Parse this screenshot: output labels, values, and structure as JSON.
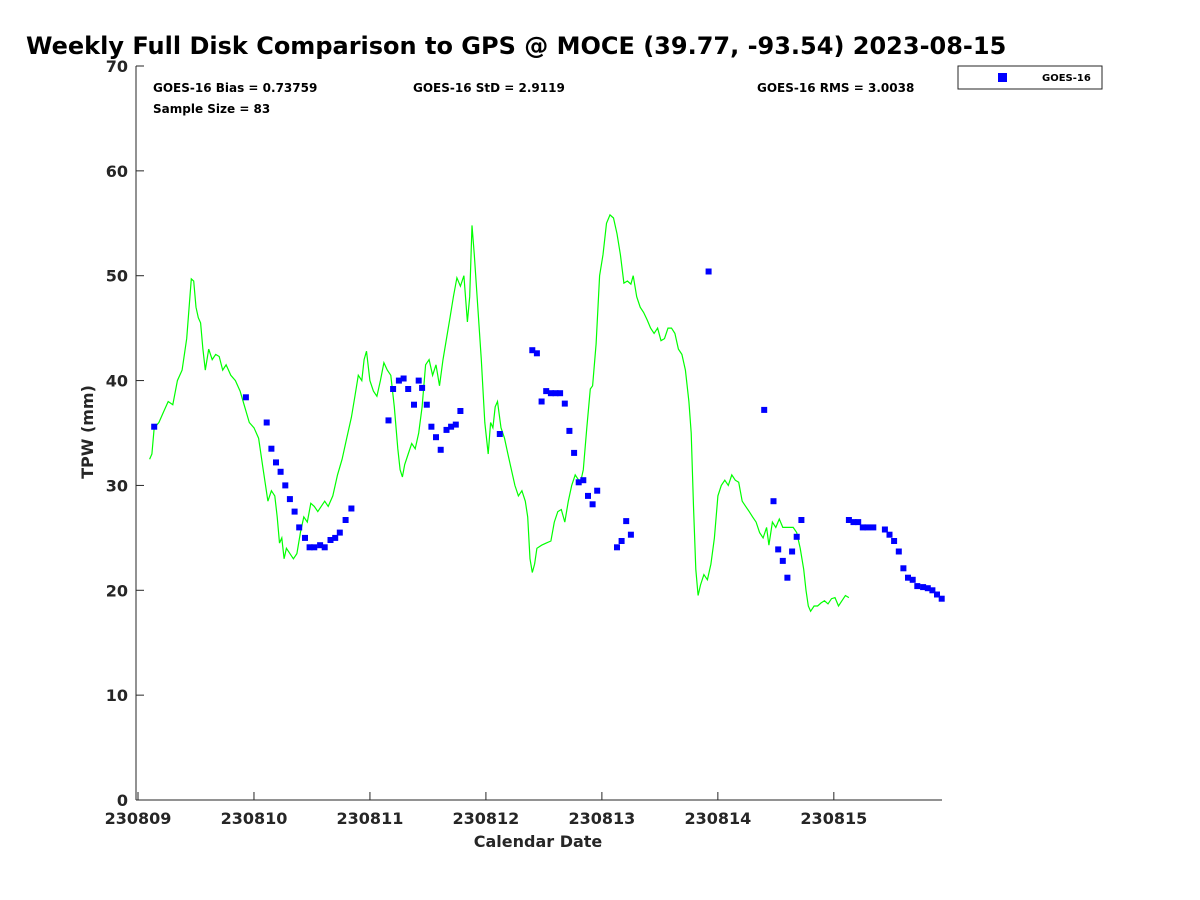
{
  "chart_data": {
    "type": "scatter",
    "title": "Weekly Full Disk Comparison to GPS @ MOCE (39.77, -93.54) 2023-08-15",
    "xlabel": "Calendar Date",
    "ylabel": "TPW (mm)",
    "xlim": [
      0,
      6.95
    ],
    "ylim": [
      0,
      70
    ],
    "x_tick_values": [
      0,
      1,
      2,
      3,
      4,
      5,
      6
    ],
    "x_tick_labels": [
      "230809",
      "230810",
      "230811",
      "230812",
      "230813",
      "230814",
      "230815"
    ],
    "y_ticks": [
      0,
      10,
      20,
      30,
      40,
      50,
      60,
      70
    ],
    "grid": false,
    "legend": {
      "position": "top-right",
      "entries": [
        "GOES-16"
      ]
    },
    "stats": {
      "bias": "GOES-16 Bias = 0.73759",
      "std": "GOES-16 StD = 2.9119",
      "rms": "GOES-16 RMS = 3.0038",
      "sample": "Sample Size = 83"
    },
    "series": [
      {
        "name": "GPS",
        "kind": "line",
        "color": "#00ff00",
        "points": [
          [
            0.1,
            32.5
          ],
          [
            0.12,
            33.0
          ],
          [
            0.14,
            35.5
          ],
          [
            0.18,
            36.0
          ],
          [
            0.22,
            37.0
          ],
          [
            0.26,
            38.0
          ],
          [
            0.3,
            37.7
          ],
          [
            0.34,
            40.0
          ],
          [
            0.38,
            41.0
          ],
          [
            0.42,
            44.0
          ],
          [
            0.46,
            49.7
          ],
          [
            0.48,
            49.5
          ],
          [
            0.5,
            47.0
          ],
          [
            0.52,
            46.0
          ],
          [
            0.54,
            45.5
          ],
          [
            0.56,
            43.0
          ],
          [
            0.58,
            41.0
          ],
          [
            0.61,
            43.0
          ],
          [
            0.64,
            42.0
          ],
          [
            0.67,
            42.5
          ],
          [
            0.7,
            42.3
          ],
          [
            0.73,
            41.0
          ],
          [
            0.76,
            41.5
          ],
          [
            0.8,
            40.5
          ],
          [
            0.84,
            40.0
          ],
          [
            0.88,
            39.0
          ],
          [
            0.92,
            37.5
          ],
          [
            0.96,
            36.0
          ],
          [
            1.0,
            35.5
          ],
          [
            1.04,
            34.5
          ],
          [
            1.08,
            31.5
          ],
          [
            1.12,
            28.5
          ],
          [
            1.15,
            29.5
          ],
          [
            1.18,
            29.0
          ],
          [
            1.2,
            27.0
          ],
          [
            1.22,
            24.5
          ],
          [
            1.24,
            25.0
          ],
          [
            1.26,
            23.0
          ],
          [
            1.28,
            24.0
          ],
          [
            1.31,
            23.5
          ],
          [
            1.34,
            23.0
          ],
          [
            1.37,
            23.5
          ],
          [
            1.4,
            25.5
          ],
          [
            1.43,
            27.0
          ],
          [
            1.46,
            26.5
          ],
          [
            1.49,
            28.3
          ],
          [
            1.52,
            28.0
          ],
          [
            1.55,
            27.5
          ],
          [
            1.58,
            28.0
          ],
          [
            1.61,
            28.5
          ],
          [
            1.64,
            28.0
          ],
          [
            1.68,
            29.0
          ],
          [
            1.72,
            31.0
          ],
          [
            1.76,
            32.5
          ],
          [
            1.8,
            34.5
          ],
          [
            1.84,
            36.5
          ],
          [
            1.87,
            38.5
          ],
          [
            1.9,
            40.5
          ],
          [
            1.93,
            40.0
          ],
          [
            1.95,
            42.0
          ],
          [
            1.97,
            42.8
          ],
          [
            2.0,
            40.0
          ],
          [
            2.03,
            39.0
          ],
          [
            2.06,
            38.5
          ],
          [
            2.09,
            40.0
          ],
          [
            2.12,
            41.7
          ],
          [
            2.15,
            41.0
          ],
          [
            2.18,
            40.5
          ],
          [
            2.21,
            37.5
          ],
          [
            2.24,
            33.5
          ],
          [
            2.26,
            31.5
          ],
          [
            2.28,
            30.8
          ],
          [
            2.3,
            32.0
          ],
          [
            2.33,
            33.0
          ],
          [
            2.36,
            34.0
          ],
          [
            2.39,
            33.5
          ],
          [
            2.42,
            35.0
          ],
          [
            2.45,
            37.5
          ],
          [
            2.48,
            41.5
          ],
          [
            2.51,
            42.0
          ],
          [
            2.54,
            40.5
          ],
          [
            2.57,
            41.5
          ],
          [
            2.6,
            39.5
          ],
          [
            2.63,
            42.0
          ],
          [
            2.66,
            44.0
          ],
          [
            2.69,
            46.0
          ],
          [
            2.72,
            48.0
          ],
          [
            2.75,
            49.8
          ],
          [
            2.78,
            49.0
          ],
          [
            2.81,
            50.0
          ],
          [
            2.84,
            45.6
          ],
          [
            2.86,
            48.0
          ],
          [
            2.88,
            54.8
          ],
          [
            2.9,
            52.0
          ],
          [
            2.93,
            47.0
          ],
          [
            2.96,
            42.0
          ],
          [
            2.99,
            36.0
          ],
          [
            3.02,
            33.0
          ],
          [
            3.04,
            36.0
          ],
          [
            3.06,
            35.5
          ],
          [
            3.08,
            37.5
          ],
          [
            3.1,
            38.0
          ],
          [
            3.13,
            35.5
          ],
          [
            3.16,
            34.5
          ],
          [
            3.19,
            33.0
          ],
          [
            3.22,
            31.5
          ],
          [
            3.25,
            30.0
          ],
          [
            3.28,
            29.0
          ],
          [
            3.31,
            29.5
          ],
          [
            3.34,
            28.5
          ],
          [
            3.36,
            27.0
          ],
          [
            3.38,
            23.0
          ],
          [
            3.4,
            21.7
          ],
          [
            3.42,
            22.5
          ],
          [
            3.44,
            24.0
          ],
          [
            3.48,
            24.3
          ],
          [
            3.52,
            24.5
          ],
          [
            3.56,
            24.7
          ],
          [
            3.59,
            26.5
          ],
          [
            3.62,
            27.5
          ],
          [
            3.65,
            27.7
          ],
          [
            3.68,
            26.5
          ],
          [
            3.71,
            28.5
          ],
          [
            3.74,
            30.0
          ],
          [
            3.77,
            31.0
          ],
          [
            3.8,
            30.5
          ],
          [
            3.82,
            30.5
          ],
          [
            3.84,
            31.5
          ],
          [
            3.87,
            35.5
          ],
          [
            3.9,
            39.2
          ],
          [
            3.92,
            39.5
          ],
          [
            3.95,
            43.5
          ],
          [
            3.98,
            50.0
          ],
          [
            4.01,
            52.0
          ],
          [
            4.04,
            55.0
          ],
          [
            4.07,
            55.8
          ],
          [
            4.1,
            55.5
          ],
          [
            4.13,
            54.0
          ],
          [
            4.16,
            52.0
          ],
          [
            4.19,
            49.3
          ],
          [
            4.22,
            49.5
          ],
          [
            4.25,
            49.2
          ],
          [
            4.27,
            50.0
          ],
          [
            4.3,
            48.0
          ],
          [
            4.33,
            47.0
          ],
          [
            4.36,
            46.5
          ],
          [
            4.39,
            45.8
          ],
          [
            4.42,
            45.0
          ],
          [
            4.45,
            44.5
          ],
          [
            4.48,
            45.0
          ],
          [
            4.51,
            43.8
          ],
          [
            4.54,
            44.0
          ],
          [
            4.57,
            45.0
          ],
          [
            4.6,
            45.0
          ],
          [
            4.63,
            44.5
          ],
          [
            4.66,
            43.0
          ],
          [
            4.69,
            42.5
          ],
          [
            4.72,
            41.0
          ],
          [
            4.75,
            38.0
          ],
          [
            4.77,
            35.0
          ],
          [
            4.79,
            28.0
          ],
          [
            4.81,
            22.0
          ],
          [
            4.83,
            19.5
          ],
          [
            4.85,
            20.5
          ],
          [
            4.88,
            21.5
          ],
          [
            4.91,
            21.0
          ],
          [
            4.94,
            22.5
          ],
          [
            4.97,
            25.0
          ],
          [
            5.0,
            29.0
          ],
          [
            5.03,
            30.0
          ],
          [
            5.06,
            30.5
          ],
          [
            5.09,
            30.0
          ],
          [
            5.12,
            31.0
          ],
          [
            5.15,
            30.5
          ],
          [
            5.18,
            30.3
          ],
          [
            5.21,
            28.5
          ],
          [
            5.24,
            28.0
          ],
          [
            5.27,
            27.5
          ],
          [
            5.3,
            27.0
          ],
          [
            5.33,
            26.5
          ],
          [
            5.36,
            25.5
          ],
          [
            5.39,
            25.0
          ],
          [
            5.42,
            26.0
          ],
          [
            5.44,
            24.3
          ],
          [
            5.47,
            26.5
          ],
          [
            5.5,
            26.0
          ],
          [
            5.53,
            26.8
          ],
          [
            5.56,
            26.0
          ],
          [
            5.59,
            26.0
          ],
          [
            5.62,
            26.0
          ],
          [
            5.65,
            26.0
          ],
          [
            5.68,
            25.5
          ],
          [
            5.71,
            24.0
          ],
          [
            5.74,
            22.0
          ],
          [
            5.76,
            20.0
          ],
          [
            5.78,
            18.5
          ],
          [
            5.8,
            18.0
          ],
          [
            5.83,
            18.5
          ],
          [
            5.86,
            18.5
          ],
          [
            5.89,
            18.8
          ],
          [
            5.92,
            19.0
          ],
          [
            5.95,
            18.7
          ],
          [
            5.98,
            19.2
          ],
          [
            6.01,
            19.3
          ],
          [
            6.04,
            18.5
          ],
          [
            6.07,
            19.0
          ],
          [
            6.1,
            19.5
          ],
          [
            6.13,
            19.3
          ]
        ]
      },
      {
        "name": "GOES-16",
        "kind": "scatter",
        "color": "#0000ff",
        "points": [
          [
            0.14,
            35.6
          ],
          [
            0.93,
            38.4
          ],
          [
            1.11,
            36.0
          ],
          [
            1.15,
            33.5
          ],
          [
            1.19,
            32.2
          ],
          [
            1.23,
            31.3
          ],
          [
            1.27,
            30.0
          ],
          [
            1.31,
            28.7
          ],
          [
            1.35,
            27.5
          ],
          [
            1.39,
            26.0
          ],
          [
            1.44,
            25.0
          ],
          [
            1.48,
            24.1
          ],
          [
            1.52,
            24.1
          ],
          [
            1.57,
            24.3
          ],
          [
            1.61,
            24.1
          ],
          [
            1.66,
            24.8
          ],
          [
            1.7,
            25.0
          ],
          [
            1.74,
            25.5
          ],
          [
            1.79,
            26.7
          ],
          [
            1.84,
            27.8
          ],
          [
            2.16,
            36.2
          ],
          [
            2.2,
            39.2
          ],
          [
            2.25,
            40.0
          ],
          [
            2.29,
            40.2
          ],
          [
            2.33,
            39.2
          ],
          [
            2.38,
            37.7
          ],
          [
            2.42,
            40.0
          ],
          [
            2.45,
            39.3
          ],
          [
            2.49,
            37.7
          ],
          [
            2.53,
            35.6
          ],
          [
            2.57,
            34.6
          ],
          [
            2.61,
            33.4
          ],
          [
            2.66,
            35.3
          ],
          [
            2.7,
            35.6
          ],
          [
            2.74,
            35.8
          ],
          [
            2.78,
            37.1
          ],
          [
            3.12,
            34.9
          ],
          [
            3.4,
            42.9
          ],
          [
            3.44,
            42.6
          ],
          [
            3.48,
            38.0
          ],
          [
            3.52,
            39.0
          ],
          [
            3.56,
            38.8
          ],
          [
            3.6,
            38.8
          ],
          [
            3.64,
            38.8
          ],
          [
            3.68,
            37.8
          ],
          [
            3.72,
            35.2
          ],
          [
            3.76,
            33.1
          ],
          [
            3.8,
            30.3
          ],
          [
            3.84,
            30.5
          ],
          [
            3.88,
            29.0
          ],
          [
            3.92,
            28.2
          ],
          [
            3.96,
            29.5
          ],
          [
            4.13,
            24.1
          ],
          [
            4.17,
            24.7
          ],
          [
            4.21,
            26.6
          ],
          [
            4.25,
            25.3
          ],
          [
            4.92,
            50.4
          ],
          [
            5.4,
            37.2
          ],
          [
            5.48,
            28.5
          ],
          [
            5.52,
            23.9
          ],
          [
            5.56,
            22.8
          ],
          [
            5.6,
            21.2
          ],
          [
            5.64,
            23.7
          ],
          [
            5.68,
            25.1
          ],
          [
            5.72,
            26.7
          ],
          [
            6.13,
            26.7
          ],
          [
            6.17,
            26.5
          ],
          [
            6.21,
            26.5
          ],
          [
            6.25,
            26.0
          ],
          [
            6.29,
            26.0
          ],
          [
            6.34,
            26.0
          ],
          [
            6.44,
            25.8
          ],
          [
            6.48,
            25.3
          ],
          [
            6.52,
            24.7
          ],
          [
            6.56,
            23.7
          ],
          [
            6.6,
            22.1
          ],
          [
            6.64,
            21.2
          ],
          [
            6.68,
            21.0
          ],
          [
            6.72,
            20.4
          ],
          [
            6.77,
            20.3
          ],
          [
            6.81,
            20.2
          ],
          [
            6.85,
            20.0
          ],
          [
            6.89,
            19.6
          ],
          [
            6.93,
            19.2
          ]
        ]
      }
    ]
  }
}
